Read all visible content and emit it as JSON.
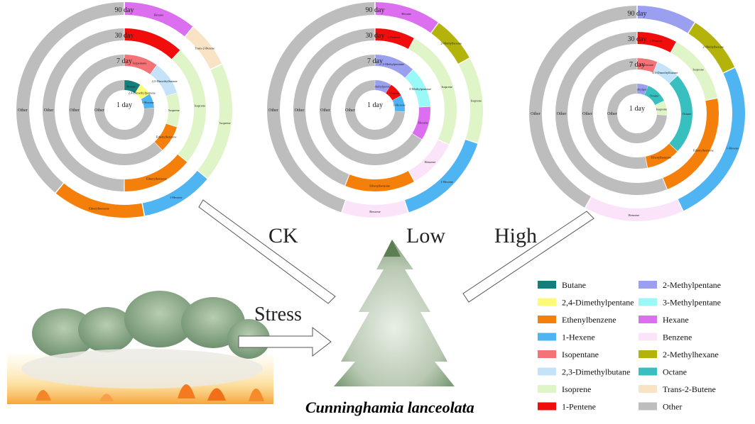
{
  "conditions": [
    {
      "label": "CK",
      "rings": [
        {
          "day": "1 day",
          "segments": [
            {
              "name": "Butane",
              "value": 9,
              "label": "Butane"
            },
            {
              "name": "2,4-Dimethylpentane",
              "value": 7,
              "label": "2,4-Dimethylpentane"
            },
            {
              "name": "1-Hexene",
              "value": 8,
              "label": "1-Hexene"
            },
            {
              "name": "Other",
              "value": 76,
              "label": "Other"
            }
          ]
        },
        {
          "day": "7 day",
          "segments": [
            {
              "name": "Isopentane",
              "value": 10,
              "label": "Isopentane"
            },
            {
              "name": "2,3-Dimethylbutane",
              "value": 10,
              "label": "2,3-Dimethylbutane"
            },
            {
              "name": "Isoprene",
              "value": 10,
              "label": "Isoprene"
            },
            {
              "name": "Ethenylbenzene",
              "value": 8,
              "label": "Ethenylbenzene"
            },
            {
              "name": "Other",
              "value": 62,
              "label": "Other"
            }
          ]
        },
        {
          "day": "30 day",
          "segments": [
            {
              "name": "1-Pentene",
              "value": 12,
              "label": ""
            },
            {
              "name": "Isoprene",
              "value": 24,
              "label": "Isoprene"
            },
            {
              "name": "Ethenylbenzene",
              "value": 14,
              "label": "Ethenylbenzene"
            },
            {
              "name": "Other",
              "value": 50,
              "label": "Other"
            }
          ]
        },
        {
          "day": "90 day",
          "segments": [
            {
              "name": "Hexane",
              "value": 11,
              "label": "Hexane"
            },
            {
              "name": "Trans-2-Butene",
              "value": 7,
              "label": "Trans-2-Butene"
            },
            {
              "name": "Isoprene",
              "value": 18,
              "label": "Isoprene"
            },
            {
              "name": "1-Hexene",
              "value": 11,
              "label": "1-Hexene"
            },
            {
              "name": "Ethenylbenzene",
              "value": 14,
              "label": "Ethenylbenzene"
            },
            {
              "name": "Other",
              "value": 39,
              "label": "Other"
            }
          ]
        }
      ]
    },
    {
      "label": "Low",
      "rings": [
        {
          "day": "1 day",
          "segments": [
            {
              "name": "2-Methylpentane",
              "value": 9,
              "label": "2-Methylpentane"
            },
            {
              "name": "1-Pentene",
              "value": 8,
              "label": "1-Pentene"
            },
            {
              "name": "1-Hexene",
              "value": 9,
              "label": "1-Hexene"
            },
            {
              "name": "Other",
              "value": 74,
              "label": "Other"
            }
          ]
        },
        {
          "day": "7 day",
          "segments": [
            {
              "name": "2-Methylpentane",
              "value": 12,
              "label": "2-Methylpentane"
            },
            {
              "name": "3-Methylpentane",
              "value": 12,
              "label": "3-Methylpentane"
            },
            {
              "name": "Hexane",
              "value": 10,
              "label": "Hexane"
            },
            {
              "name": "Other",
              "value": 66,
              "label": "Other"
            }
          ]
        },
        {
          "day": "30 day",
          "segments": [
            {
              "name": "1-Pentene",
              "value": 8,
              "label": "1-Pentene"
            },
            {
              "name": "Isoprene",
              "value": 24,
              "label": "Isoprene"
            },
            {
              "name": "Benzene",
              "value": 10,
              "label": "Benzene"
            },
            {
              "name": "Ethenylbenzene",
              "value": 14,
              "label": "Ethenylbenzene"
            },
            {
              "name": "Other",
              "value": 44,
              "label": "Other"
            }
          ]
        },
        {
          "day": "90 day",
          "segments": [
            {
              "name": "Hexane",
              "value": 10,
              "label": "Hexane"
            },
            {
              "name": "2-Methylhexane",
              "value": 7,
              "label": "2-Methylhexane"
            },
            {
              "name": "Isoprene",
              "value": 13,
              "label": "Isoprene"
            },
            {
              "name": "1-Hexene",
              "value": 15,
              "label": "1-Hexene"
            },
            {
              "name": "Benzene",
              "value": 10,
              "label": "Benzene"
            },
            {
              "name": "Other",
              "value": 45,
              "label": "Other"
            }
          ]
        }
      ]
    },
    {
      "label": "High",
      "rings": [
        {
          "day": "1 day",
          "segments": [
            {
              "name": "2-Methylpentane",
              "value": 6,
              "label": "2-Methylpentane"
            },
            {
              "name": "Octane",
              "value": 12,
              "label": "Octane"
            },
            {
              "name": "Isoprene",
              "value": 8,
              "label": "Isoprene"
            },
            {
              "name": "Other",
              "value": 74,
              "label": "Other"
            }
          ]
        },
        {
          "day": "7 day",
          "segments": [
            {
              "name": "Isopentane",
              "value": 6,
              "label": "Isopentane"
            },
            {
              "name": "2,3-Dimethylbutane",
              "value": 7,
              "label": "2,3-Dimethylbutane"
            },
            {
              "name": "Octane",
              "value": 24,
              "label": "Octane"
            },
            {
              "name": "Ethenylbenzene",
              "value": 10,
              "label": "Ethenylbenzene"
            },
            {
              "name": "Other",
              "value": 53,
              "label": "Other"
            }
          ]
        },
        {
          "day": "30 day",
          "segments": [
            {
              "name": "1-Pentene",
              "value": 8,
              "label": "1-Pentene"
            },
            {
              "name": "Isoprene",
              "value": 14,
              "label": "Isoprene"
            },
            {
              "name": "Ethenylbenzene",
              "value": 22,
              "label": "Ethenylbenzene"
            },
            {
              "name": "Other",
              "value": 56,
              "label": "Other"
            }
          ]
        },
        {
          "day": "90 day",
          "segments": [
            {
              "name": "2-Methylpentane",
              "value": 9,
              "label": ""
            },
            {
              "name": "2-Methylhexane",
              "value": 9,
              "label": "2-Methylhexane"
            },
            {
              "name": "1-Hexene",
              "value": 25,
              "label": "1-Hexene"
            },
            {
              "name": "Benzene",
              "value": 15,
              "label": "Benzene"
            },
            {
              "name": "Other",
              "value": 42,
              "label": "Other"
            }
          ]
        }
      ]
    }
  ],
  "stress_label": "Stress",
  "species_label": "Cunninghamia lanceolata",
  "legend": [
    {
      "name": "Butane",
      "color": "#127f7a"
    },
    {
      "name": "2,4-Dimethylpentane",
      "color": "#fcfb76"
    },
    {
      "name": "Ethenylbenzene",
      "color": "#f57f0b"
    },
    {
      "name": "1-Hexene",
      "color": "#4fb4f2"
    },
    {
      "name": "Isopentane",
      "color": "#f37376"
    },
    {
      "name": "2,3-Dimethylbutane",
      "color": "#c4e3f9"
    },
    {
      "name": "Isoprene",
      "color": "#dff4c7"
    },
    {
      "name": "1-Pentene",
      "color": "#f20d0d"
    },
    {
      "name": "2-Methylpentane",
      "color": "#9b9ff0"
    },
    {
      "name": "3-Methylpentane",
      "color": "#9af9f6"
    },
    {
      "name": "Hexane",
      "color": "#dc6ef0"
    },
    {
      "name": "Benzene",
      "color": "#fbe4fa"
    },
    {
      "name": "2-Methylhexane",
      "color": "#b3b30c"
    },
    {
      "name": "Octane",
      "color": "#38bfbf"
    },
    {
      "name": "Trans-2-Butene",
      "color": "#f8e4c4"
    },
    {
      "name": "Other",
      "color": "#bdbdbd"
    }
  ]
}
